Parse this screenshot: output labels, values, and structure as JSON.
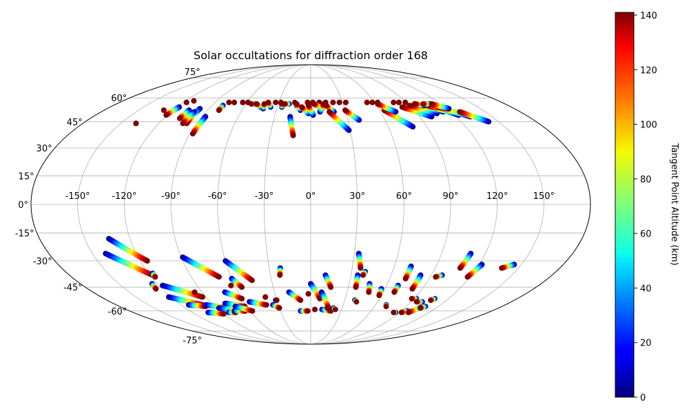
{
  "chart_data": {
    "type": "scatter",
    "projection": "mollweide",
    "title": "Solar occultations for diffraction order 168",
    "grid": true,
    "lon_ticks": [
      -150,
      -120,
      -90,
      -60,
      -30,
      0,
      30,
      60,
      90,
      120,
      150
    ],
    "lon_tick_labels": [
      "-150°",
      "-120°",
      "-90°",
      "-60°",
      "-30°",
      "0°",
      "30°",
      "60°",
      "90°",
      "120°",
      "150°"
    ],
    "lat_ticks": [
      -75,
      -60,
      -45,
      -30,
      -15,
      0,
      15,
      30,
      45,
      60,
      75
    ],
    "lat_tick_labels": [
      "-75°",
      "-60°",
      "-45°",
      "-30°",
      "-15°",
      "0°",
      "15°",
      "30°",
      "45°",
      "60°",
      "75°"
    ],
    "colorbar": {
      "label": "Tangent Point Altitude (km)",
      "colormap": "jet",
      "range": [
        0,
        141
      ],
      "ticks": [
        0,
        20,
        40,
        60,
        80,
        100,
        120,
        140
      ],
      "tick_labels": [
        "0",
        "20",
        "40",
        "60",
        "80",
        "100",
        "120",
        "140"
      ]
    },
    "series": [
      {
        "tracks": [
          {
            "lon_start": -77,
            "lat_start": 57,
            "lon_end": -77,
            "lat_end": 57
          },
          {
            "lon_start": -72,
            "lat_start": 57,
            "lon_end": -72,
            "lat_end": 57
          },
          {
            "lon_start": -64,
            "lat_start": 57,
            "lon_end": -64,
            "lat_end": 57
          },
          {
            "lon_start": -59,
            "lat_start": 57,
            "lon_end": -59,
            "lat_end": 57
          },
          {
            "lon_start": -28,
            "lat_start": 57,
            "lon_end": -28,
            "lat_end": 57
          },
          {
            "lon_start": -33,
            "lat_start": 57,
            "lon_end": -33,
            "lat_end": 57
          },
          {
            "lon_start": -3,
            "lat_start": 57,
            "lon_end": -3,
            "lat_end": 57
          },
          {
            "lon_start": 2,
            "lat_start": 57,
            "lon_end": 2,
            "lat_end": 57
          },
          {
            "lon_start": 8,
            "lat_start": 57,
            "lon_end": 8,
            "lat_end": 57
          },
          {
            "lon_start": 14,
            "lat_start": 57,
            "lon_end": 14,
            "lat_end": 57
          },
          {
            "lon_start": 21,
            "lat_start": 57,
            "lon_end": 21,
            "lat_end": 57
          },
          {
            "lon_start": 27,
            "lat_start": 57,
            "lon_end": 27,
            "lat_end": 57
          },
          {
            "lon_start": 33,
            "lat_start": 57,
            "lon_end": 33,
            "lat_end": 57
          },
          {
            "lon_start": 53,
            "lat_start": 57,
            "lon_end": 53,
            "lat_end": 57
          },
          {
            "lon_start": 58,
            "lat_start": 57,
            "lon_end": 58,
            "lat_end": 57
          },
          {
            "lon_start": 63,
            "lat_start": 57,
            "lon_end": 63,
            "lat_end": 57
          },
          {
            "lon_start": 78,
            "lat_start": 57,
            "lon_end": 78,
            "lat_end": 57
          },
          {
            "lon_start": 83,
            "lat_start": 57,
            "lon_end": 83,
            "lat_end": 57
          },
          {
            "lon_start": 89,
            "lat_start": 57,
            "lon_end": 89,
            "lat_end": 57
          },
          {
            "lon_start": -138,
            "lat_start": 44,
            "lon_end": -138,
            "lat_end": 44
          },
          {
            "lon_start": -128,
            "lat_start": 52,
            "lon_end": -128,
            "lat_end": 52
          },
          {
            "lon_start": -117,
            "lat_start": 57,
            "lon_end": -117,
            "lat_end": 57
          },
          {
            "lon_start": -112,
            "lat_start": 58,
            "lon_end": -112,
            "lat_end": 58
          },
          {
            "lon_start": -118,
            "lat_start": 54,
            "lon_end": -121,
            "lat_end": 49
          },
          {
            "lon_start": -106,
            "lat_start": 52,
            "lon_end": -107,
            "lat_end": 47
          },
          {
            "lon_start": -98,
            "lat_start": 53,
            "lon_end": -98,
            "lat_end": 44
          },
          {
            "lon_start": -100,
            "lat_start": 51,
            "lon_end": -101,
            "lat_end": 44
          },
          {
            "lon_start": -87,
            "lat_start": 48,
            "lon_end": -88,
            "lat_end": 38
          },
          {
            "lon_start": -80,
            "lat_start": 55,
            "lon_end": -80,
            "lat_end": 52
          },
          {
            "lon_start": -52,
            "lat_start": 56,
            "lon_end": -55,
            "lat_end": 56
          },
          {
            "lon_start": -45,
            "lat_start": 54,
            "lon_end": -50,
            "lat_end": 56
          },
          {
            "lon_start": -42,
            "lat_start": 53,
            "lon_end": -43,
            "lat_end": 56
          },
          {
            "lon_start": -36,
            "lat_start": 54,
            "lon_end": -40,
            "lat_end": 57
          },
          {
            "lon_start": -26,
            "lat_start": 54,
            "lon_end": -27,
            "lat_end": 56
          },
          {
            "lon_start": -20,
            "lat_start": 56,
            "lon_end": -24,
            "lat_end": 56
          },
          {
            "lon_start": -17,
            "lat_start": 48,
            "lon_end": -13,
            "lat_end": 37
          },
          {
            "lon_start": -13,
            "lat_start": 55,
            "lon_end": -15,
            "lat_end": 57
          },
          {
            "lon_start": -9,
            "lat_start": 52,
            "lon_end": -13,
            "lat_end": 56
          },
          {
            "lon_start": -2,
            "lat_start": 50,
            "lon_end": -8,
            "lat_end": 54
          },
          {
            "lon_start": 2,
            "lat_start": 49,
            "lon_end": -2,
            "lat_end": 55
          },
          {
            "lon_start": 10,
            "lat_start": 53,
            "lon_end": 3,
            "lat_end": 56
          },
          {
            "lon_start": 8,
            "lat_start": 51,
            "lon_end": 12,
            "lat_end": 56
          },
          {
            "lon_start": 20,
            "lat_start": 51,
            "lon_end": 14,
            "lat_end": 55
          },
          {
            "lon_start": 29,
            "lat_start": 40,
            "lon_end": 16,
            "lat_end": 51
          },
          {
            "lon_start": 39,
            "lat_start": 46,
            "lon_end": 30,
            "lat_end": 52
          },
          {
            "lon_start": 79,
            "lat_start": 42,
            "lon_end": 64,
            "lat_end": 52
          },
          {
            "lon_start": 73,
            "lat_start": 51,
            "lon_end": 62,
            "lat_end": 56
          },
          {
            "lon_start": 100,
            "lat_start": 48,
            "lon_end": 82,
            "lat_end": 54
          },
          {
            "lon_start": 107,
            "lat_start": 50,
            "lon_end": 90,
            "lat_end": 55
          },
          {
            "lon_start": 114,
            "lat_start": 51,
            "lon_end": 96,
            "lat_end": 56
          },
          {
            "lon_start": 124,
            "lat_start": 49,
            "lon_end": 106,
            "lat_end": 55
          },
          {
            "lon_start": 132,
            "lat_start": 48,
            "lon_end": 114,
            "lat_end": 54
          },
          {
            "lon_start": 142,
            "lat_start": 45,
            "lon_end": 128,
            "lat_end": 51
          },
          {
            "lon_start": 103,
            "lat_start": 55,
            "lon_end": 97,
            "lat_end": 56
          },
          {
            "lon_start": 110,
            "lat_start": 56,
            "lon_end": 104,
            "lat_end": 56
          },
          {
            "lon_start": 122,
            "lat_start": 53,
            "lon_end": 112,
            "lat_end": 56
          },
          {
            "lon_start": -141,
            "lat_start": -26,
            "lon_end": -118,
            "lat_end": -38
          },
          {
            "lon_start": -134,
            "lat_start": -18,
            "lon_end": -115,
            "lat_end": -30
          },
          {
            "lon_start": -124,
            "lat_start": -43,
            "lon_end": -125,
            "lat_end": -46
          },
          {
            "lon_start": -117,
            "lat_start": -37,
            "lon_end": -117,
            "lat_end": -39
          },
          {
            "lon_start": -117,
            "lat_start": -44,
            "lon_end": -93,
            "lat_end": -51
          },
          {
            "lon_start": -122,
            "lat_start": -51,
            "lon_end": -100,
            "lat_end": -56
          },
          {
            "lon_start": -113,
            "lat_start": -56,
            "lon_end": -99,
            "lat_end": -57
          },
          {
            "lon_start": -104,
            "lat_start": -61,
            "lon_end": -90,
            "lat_end": -62
          },
          {
            "lon_start": -96,
            "lat_start": -48,
            "lon_end": -96,
            "lat_end": -48
          },
          {
            "lon_start": -97,
            "lat_start": -56,
            "lon_end": -79,
            "lat_end": -58
          },
          {
            "lon_start": -89,
            "lat_start": -28,
            "lon_end": -69,
            "lat_end": -39
          },
          {
            "lon_start": -78,
            "lat_start": -55,
            "lon_end": -62,
            "lat_end": -57
          },
          {
            "lon_start": -71,
            "lat_start": -48,
            "lon_end": -60,
            "lat_end": -52
          },
          {
            "lon_start": -88,
            "lat_start": -58,
            "lon_end": -66,
            "lat_end": -60
          },
          {
            "lon_start": -83,
            "lat_start": -61,
            "lon_end": -76,
            "lat_end": -61
          },
          {
            "lon_start": -76,
            "lat_start": -60,
            "lon_end": -65,
            "lat_end": -60
          },
          {
            "lon_start": -71,
            "lat_start": -57,
            "lon_end": -58,
            "lat_end": -60
          },
          {
            "lon_start": -60,
            "lat_start": -40,
            "lon_end": -55,
            "lat_end": -45
          },
          {
            "lon_start": -63,
            "lat_start": -44,
            "lon_end": -63,
            "lat_end": -44
          },
          {
            "lon_start": -60,
            "lat_start": -30,
            "lon_end": -45,
            "lat_end": -41
          },
          {
            "lon_start": -55,
            "lat_start": -54,
            "lon_end": -41,
            "lat_end": -56
          },
          {
            "lon_start": -39,
            "lat_start": -51,
            "lon_end": -39,
            "lat_end": -51
          },
          {
            "lon_start": -35,
            "lat_start": -56,
            "lon_end": -30,
            "lat_end": -58
          },
          {
            "lon_start": -31,
            "lat_start": -53,
            "lon_end": -30,
            "lat_end": -53
          },
          {
            "lon_start": -22,
            "lat_start": -34,
            "lon_end": -23,
            "lat_end": -38
          },
          {
            "lon_start": -18,
            "lat_start": -48,
            "lon_end": -9,
            "lat_end": -53
          },
          {
            "lon_start": -2,
            "lat_start": -49,
            "lon_end": -2,
            "lat_end": -49
          },
          {
            "lon_start": 0,
            "lat_start": -43,
            "lon_end": 8,
            "lat_end": -52
          },
          {
            "lon_start": -10,
            "lat_start": -60,
            "lon_end": -3,
            "lat_end": -60
          },
          {
            "lon_start": 4,
            "lat_start": -59,
            "lon_end": 4,
            "lat_end": -59
          },
          {
            "lon_start": 11,
            "lat_start": -38,
            "lon_end": 16,
            "lat_end": -45
          },
          {
            "lon_start": 9,
            "lat_start": -48,
            "lon_end": 17,
            "lat_end": -58
          },
          {
            "lon_start": 11,
            "lat_start": -59,
            "lon_end": 20,
            "lat_end": -60
          },
          {
            "lon_start": 16,
            "lat_start": -58,
            "lon_end": 16,
            "lat_end": -58
          },
          {
            "lon_start": 22,
            "lat_start": -58,
            "lon_end": 24,
            "lat_end": -59
          },
          {
            "lon_start": 33,
            "lat_start": -26,
            "lon_end": 36,
            "lat_end": -34
          },
          {
            "lon_start": 35,
            "lat_start": -38,
            "lon_end": 36,
            "lat_end": -45
          },
          {
            "lon_start": 40,
            "lat_start": -36,
            "lon_end": 39,
            "lat_end": -38
          },
          {
            "lon_start": 39,
            "lat_start": -53,
            "lon_end": 41,
            "lat_end": -54
          },
          {
            "lon_start": 46,
            "lat_start": -43,
            "lon_end": 48,
            "lat_end": -48
          },
          {
            "lon_start": 57,
            "lat_start": -46,
            "lon_end": 58,
            "lat_end": -50
          },
          {
            "lon_start": 69,
            "lat_start": -44,
            "lon_end": 69,
            "lat_end": -48
          },
          {
            "lon_start": 72,
            "lat_start": -33,
            "lon_end": 72,
            "lat_end": -40
          },
          {
            "lon_start": 70,
            "lat_start": -56,
            "lon_end": 71,
            "lat_end": -57
          },
          {
            "lon_start": 82,
            "lat_start": -38,
            "lon_end": 82,
            "lat_end": -46
          },
          {
            "lon_start": 92,
            "lat_start": -52,
            "lon_end": 88,
            "lat_end": -52
          },
          {
            "lon_start": 86,
            "lat_start": -61,
            "lon_end": 84,
            "lat_end": -61
          },
          {
            "lon_start": 98,
            "lat_start": -38,
            "lon_end": 94,
            "lat_end": -39
          },
          {
            "lon_start": 100,
            "lat_start": -54,
            "lon_end": 95,
            "lat_end": -54
          },
          {
            "lon_start": 96,
            "lat_start": -60,
            "lon_end": 92,
            "lat_end": -61
          },
          {
            "lon_start": 106,
            "lat_start": -57,
            "lon_end": 99,
            "lat_end": -61
          },
          {
            "lon_start": 108,
            "lat_start": -52,
            "lon_end": 106,
            "lat_end": -53
          },
          {
            "lon_start": 108,
            "lat_start": -57,
            "lon_end": 105,
            "lat_end": -58
          },
          {
            "lon_start": 110,
            "lat_start": -26,
            "lon_end": 108,
            "lat_end": -34
          },
          {
            "lon_start": 122,
            "lat_start": -32,
            "lon_end": 118,
            "lat_end": -39
          },
          {
            "lon_start": 145,
            "lat_start": -32,
            "lon_end": 138,
            "lat_end": -34
          }
        ]
      }
    ]
  }
}
